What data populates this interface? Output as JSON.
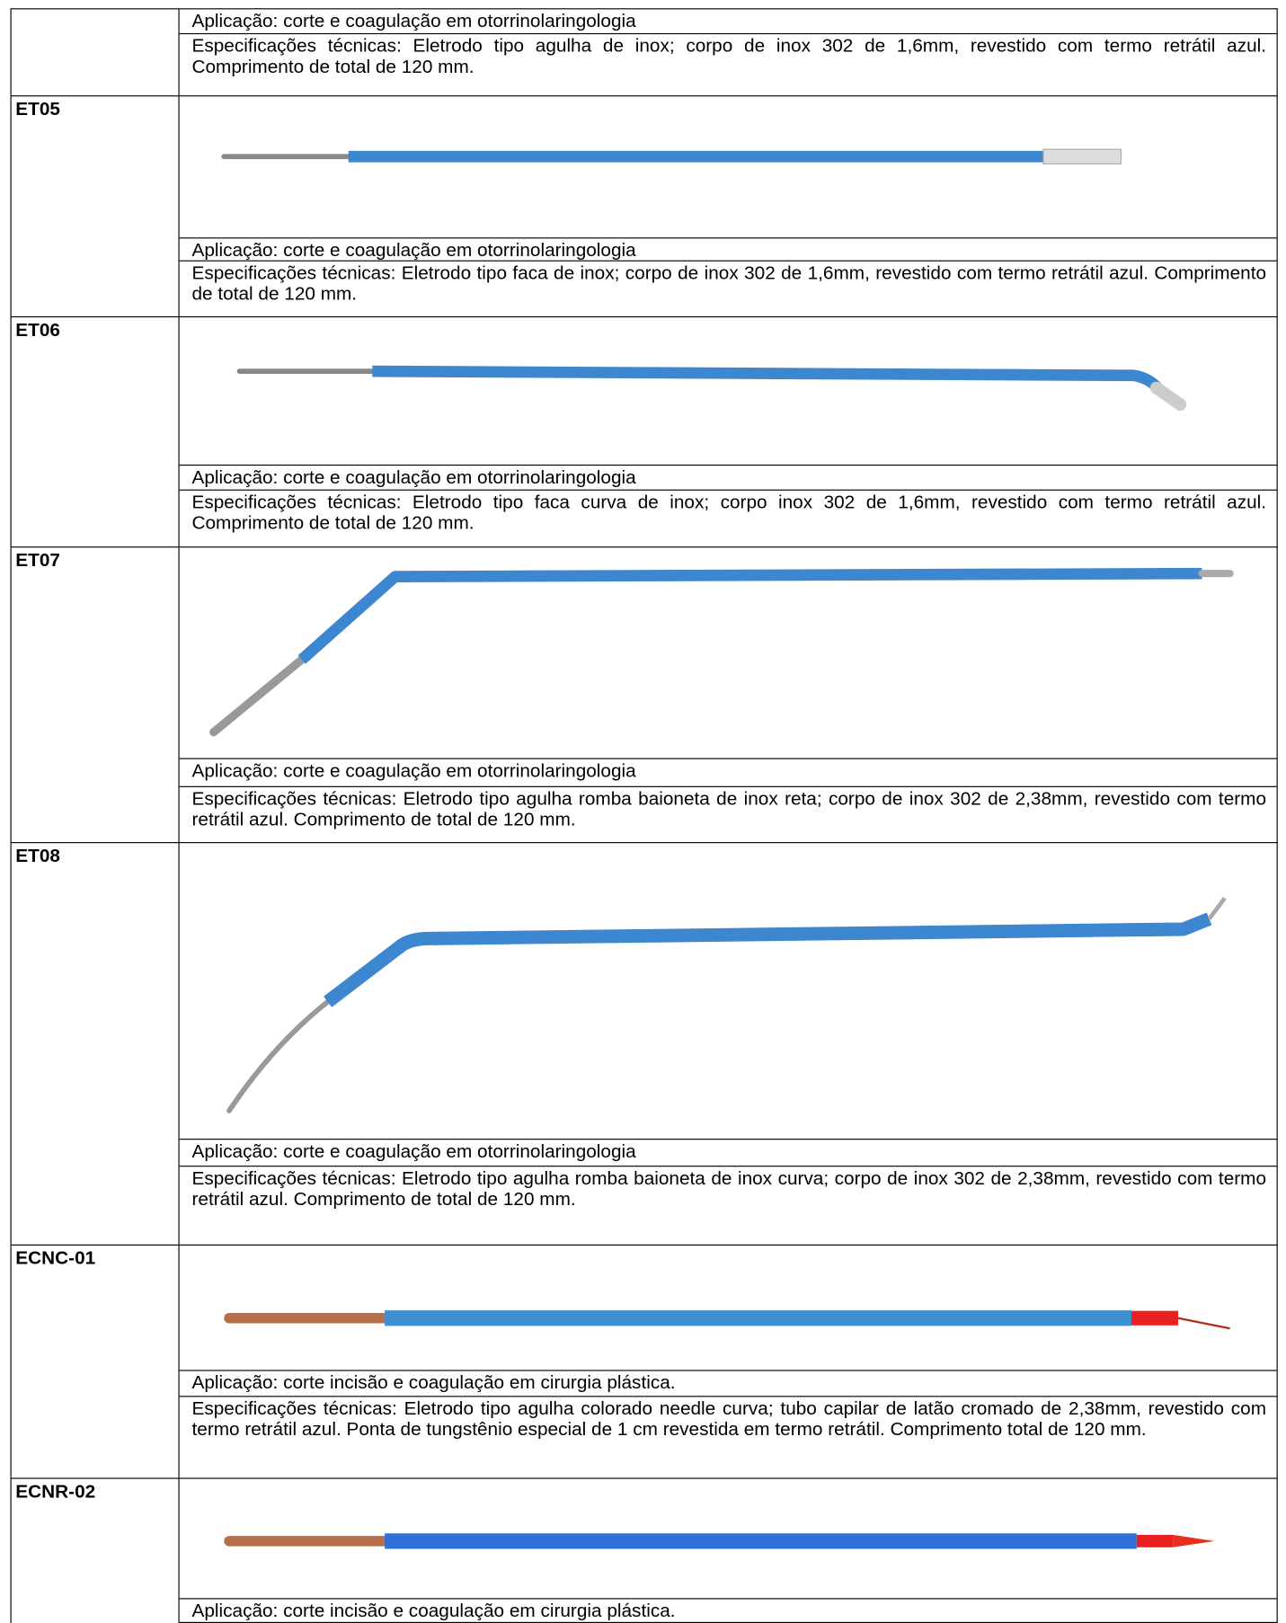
{
  "rows": [
    {
      "application": "Aplicação: corte e coagulação em otorrinolaringologia",
      "specifications": "Especificações técnicas: Eletrodo tipo agulha de inox; corpo de inox 302 de 1,6mm, revestido com termo retrátil azul. Comprimento de total de 120 mm."
    },
    {
      "code": "ET05",
      "application": "Aplicação: corte e coagulação em otorrinolaringologia",
      "specifications": "Especificações técnicas: Eletrodo tipo faca de inox; corpo de inox 302 de 1,6mm, revestido com termo retrátil azul. Comprimento de total de 120 mm."
    },
    {
      "code": "ET06",
      "application": "Aplicação: corte e coagulação em otorrinolaringologia",
      "specifications": "Especificações técnicas: Eletrodo tipo faca curva de inox; corpo inox 302 de 1,6mm, revestido com termo retrátil azul. Comprimento de total de 120 mm."
    },
    {
      "code": "ET07",
      "application": "Aplicação: corte e coagulação em otorrinolaringologia",
      "specifications": "Especificações técnicas: Eletrodo tipo agulha romba baioneta de inox reta; corpo de inox 302 de 2,38mm, revestido com termo retrátil azul. Comprimento de total de 120 mm."
    },
    {
      "code": "ET08",
      "application": "Aplicação: corte e coagulação em otorrinolaringologia",
      "specifications": "Especificações técnicas: Eletrodo tipo agulha romba baioneta de inox curva; corpo de inox 302 de 2,38mm, revestido com termo retrátil azul. Comprimento de total de 120 mm."
    },
    {
      "code": "ECNC-01",
      "application": "Aplicação: corte incisão e coagulação em cirurgia plástica.",
      "specifications": "Especificações técnicas: Eletrodo tipo agulha colorado needle curva; tubo capilar de latão cromado de 2,38mm, revestido com termo retrátil azul. Ponta de tungstênio especial de 1 cm revestida em termo retrátil. Comprimento total de 120 mm."
    },
    {
      "code": "ECNR-02",
      "application": "Aplicação: corte incisão e coagulação em cirurgia plástica."
    }
  ]
}
